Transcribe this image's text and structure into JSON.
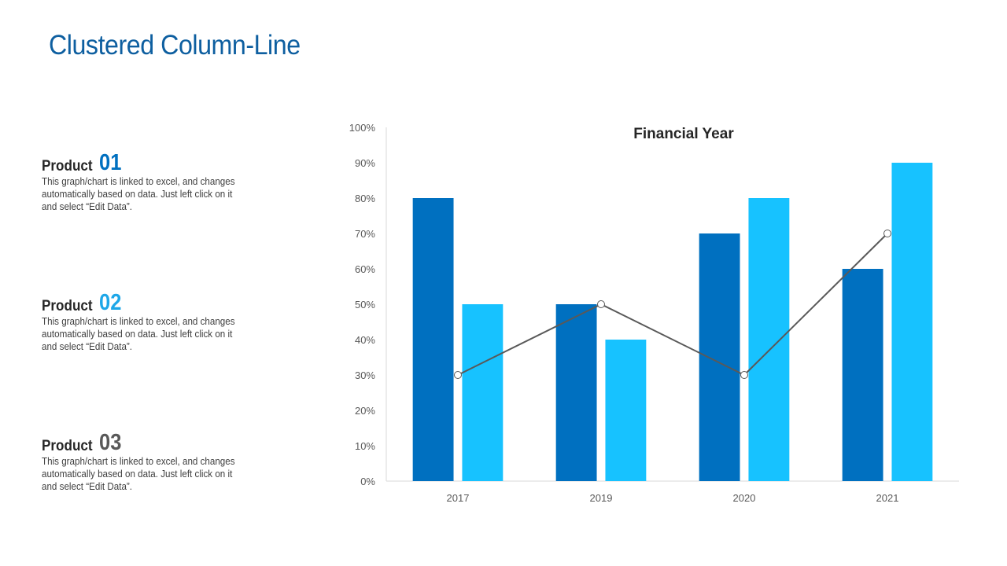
{
  "page": {
    "title": "Clustered Column-Line"
  },
  "products": [
    {
      "word": "Product",
      "number": "01",
      "number_color": "#0070C0",
      "desc": "This graph/chart is linked to excel, and changes automatically based on data. Just left click on it and select “Edit Data”."
    },
    {
      "word": "Product",
      "number": "02",
      "number_color": "#1EA7E8",
      "desc": "This graph/chart is linked to excel, and changes automatically based on data. Just left click on it and select “Edit Data”."
    },
    {
      "word": "Product",
      "number": "03",
      "number_color": "#595959",
      "desc": "This graph/chart is linked to excel, and changes automatically based on data. Just left click on it and select “Edit Data”."
    }
  ],
  "chart_data": {
    "type": "bar",
    "title": "Financial Year",
    "categories": [
      "2017",
      "2019",
      "2020",
      "2021"
    ],
    "ylim": [
      0,
      100
    ],
    "yticks": [
      "0%",
      "10%",
      "20%",
      "30%",
      "40%",
      "50%",
      "60%",
      "70%",
      "80%",
      "90%",
      "100%"
    ],
    "series": [
      {
        "kind": "bar",
        "color": "#0070C0",
        "values": [
          80,
          50,
          70,
          60
        ]
      },
      {
        "kind": "bar",
        "color": "#17C2FF",
        "values": [
          50,
          40,
          80,
          90
        ]
      },
      {
        "kind": "line",
        "color": "#595959",
        "values": [
          30,
          50,
          30,
          70
        ]
      }
    ],
    "grid": false,
    "legend": "none"
  }
}
